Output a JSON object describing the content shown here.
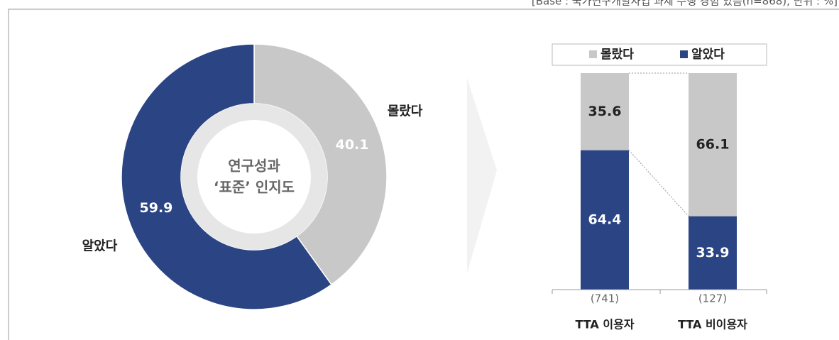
{
  "note": "[Base : 국가연구개발사업 과제 수행 경험 있음(n=868), 단위 : %]",
  "chart_data": [
    {
      "type": "donut",
      "center_text": [
        "연구성과",
        "‘표준’ 인지도"
      ],
      "categories": [
        "몰랐다",
        "알았다"
      ],
      "values": [
        40.1,
        59.9
      ],
      "colors": [
        "#c8c8c8",
        "#2b4584"
      ]
    },
    {
      "type": "stacked_bar",
      "categories": [
        "TTA 이용자",
        "TTA 비이용자"
      ],
      "sample_sizes": [
        "(741)",
        "(127)"
      ],
      "series": [
        {
          "name": "알았다",
          "color": "#2b4584",
          "values": [
            64.4,
            33.9
          ]
        },
        {
          "name": "몰랐다",
          "color": "#c8c8c8",
          "values": [
            35.6,
            66.1
          ]
        }
      ],
      "ylim": [
        0,
        100
      ],
      "legend_order": [
        1,
        0
      ]
    }
  ]
}
